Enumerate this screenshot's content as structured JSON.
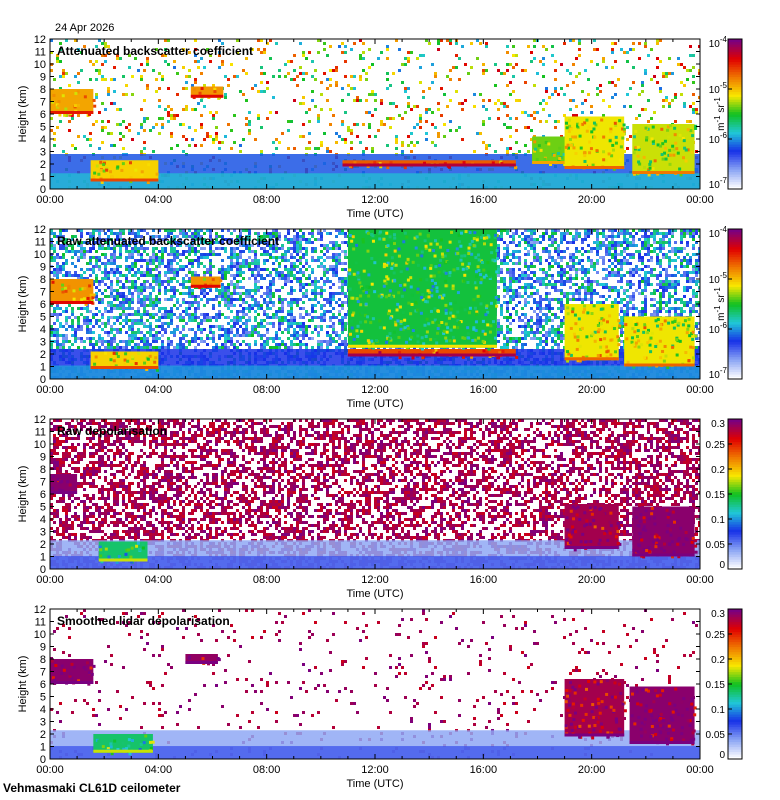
{
  "header": {
    "date": "24 Apr 2026"
  },
  "footer": {
    "site": "Vehmasmaki CL61D ceilometer"
  },
  "colors": {
    "purple": "#7a0080",
    "red": "#e00000",
    "orange": "#f07800",
    "yellow": "#f8e800",
    "green": "#10c020",
    "cyan": "#20c8d8",
    "blue": "#1830e8",
    "lightblue": "#8aa4f4",
    "white": "#ffffff"
  },
  "chart_data": [
    {
      "type": "heatmap",
      "title": "Attenuated backscatter coefficient",
      "xlabel": "Time (UTC)",
      "ylabel": "Height (km)",
      "xticks": [
        "00:00",
        "04:00",
        "08:00",
        "12:00",
        "16:00",
        "20:00",
        "00:00"
      ],
      "yticks": [
        "0",
        "1",
        "2",
        "3",
        "4",
        "5",
        "6",
        "7",
        "8",
        "9",
        "10",
        "11",
        "12"
      ],
      "xlim": [
        0,
        24
      ],
      "ylim": [
        0,
        12
      ],
      "colorbar": {
        "scale": "log",
        "range": [
          1e-07,
          0.0001
        ],
        "ticks": [
          {
            "base": "10",
            "exp": "-4"
          },
          {
            "base": "10",
            "exp": "-5"
          },
          {
            "base": "10",
            "exp": "-6"
          },
          {
            "base": "10",
            "exp": "-7"
          }
        ],
        "unit": {
          "a": "m",
          "a_exp": "-1",
          "b": "sr",
          "b_exp": "-1"
        }
      },
      "boundary_layer": {
        "top_km": 2.8,
        "level": 0.28
      },
      "noise": {
        "density": 0.12,
        "below_km": 12.0,
        "level_lo": 0.3,
        "level_hi": 0.9
      },
      "features": [
        {
          "t0": 0.0,
          "t1": 1.6,
          "z0": 6.0,
          "z1": 8.0,
          "level": 0.7
        },
        {
          "t0": 1.5,
          "t1": 4.0,
          "z0": 0.6,
          "z1": 2.3,
          "level": 0.65
        },
        {
          "t0": 5.2,
          "t1": 6.4,
          "z0": 7.3,
          "z1": 8.2,
          "level": 0.72
        },
        {
          "t0": 10.8,
          "t1": 17.2,
          "z0": 1.8,
          "z1": 2.3,
          "level": 0.78
        },
        {
          "t0": 17.8,
          "t1": 19.2,
          "z0": 2.0,
          "z1": 4.2,
          "level": 0.55
        },
        {
          "t0": 19.0,
          "t1": 21.2,
          "z0": 1.6,
          "z1": 5.8,
          "level": 0.62
        },
        {
          "t0": 21.5,
          "t1": 23.8,
          "z0": 1.2,
          "z1": 5.2,
          "level": 0.6
        }
      ]
    },
    {
      "type": "heatmap",
      "title": "Raw attenuated backscatter coefficient",
      "xlabel": "Time (UTC)",
      "ylabel": "Height (km)",
      "xticks": [
        "00:00",
        "04:00",
        "08:00",
        "12:00",
        "16:00",
        "20:00",
        "00:00"
      ],
      "yticks": [
        "0",
        "1",
        "2",
        "3",
        "4",
        "5",
        "6",
        "7",
        "8",
        "9",
        "10",
        "11",
        "12"
      ],
      "xlim": [
        0,
        24
      ],
      "ylim": [
        0,
        12
      ],
      "colorbar": {
        "scale": "log",
        "range": [
          1e-07,
          0.0001
        ],
        "ticks": [
          {
            "base": "10",
            "exp": "-4"
          },
          {
            "base": "10",
            "exp": "-5"
          },
          {
            "base": "10",
            "exp": "-6"
          },
          {
            "base": "10",
            "exp": "-7"
          }
        ],
        "unit": {
          "a": "m",
          "a_exp": "-1",
          "b": "sr",
          "b_exp": "-1"
        }
      },
      "boundary_layer": {
        "top_km": 2.4,
        "level": 0.25
      },
      "noise": {
        "density": 0.55,
        "below_km": 12.0,
        "level_lo": 0.12,
        "level_hi": 0.5
      },
      "features": [
        {
          "t0": 0.0,
          "t1": 1.6,
          "z0": 6.0,
          "z1": 8.0,
          "level": 0.72
        },
        {
          "t0": 1.5,
          "t1": 4.0,
          "z0": 0.8,
          "z1": 2.2,
          "level": 0.65
        },
        {
          "t0": 5.2,
          "t1": 6.3,
          "z0": 7.3,
          "z1": 8.2,
          "level": 0.72
        },
        {
          "t0": 11.0,
          "t1": 17.2,
          "z0": 1.8,
          "z1": 2.4,
          "level": 0.8
        },
        {
          "t0": 11.0,
          "t1": 16.5,
          "z0": 2.5,
          "z1": 12.0,
          "level": 0.48
        },
        {
          "t0": 19.0,
          "t1": 21.0,
          "z0": 1.5,
          "z1": 6.0,
          "level": 0.62
        },
        {
          "t0": 21.2,
          "t1": 23.8,
          "z0": 1.0,
          "z1": 5.0,
          "level": 0.62
        }
      ]
    },
    {
      "type": "heatmap",
      "title": "Raw depolarisation",
      "xlabel": "Time (UTC)",
      "ylabel": "Height (km)",
      "xticks": [
        "00:00",
        "04:00",
        "08:00",
        "12:00",
        "16:00",
        "20:00",
        "00:00"
      ],
      "yticks": [
        "0",
        "1",
        "2",
        "3",
        "4",
        "5",
        "6",
        "7",
        "8",
        "9",
        "10",
        "11",
        "12"
      ],
      "xlim": [
        0,
        24
      ],
      "ylim": [
        0,
        12
      ],
      "colorbar": {
        "scale": "linear",
        "range": [
          0,
          0.3
        ],
        "ticks": [
          "0.3",
          "0.25",
          "0.2",
          "0.15",
          "0.1",
          "0.05",
          "0"
        ]
      },
      "boundary_layer": {
        "top_km": 2.3,
        "level": 0.12
      },
      "noise": {
        "density": 0.55,
        "below_km": 12.0,
        "level_lo": 0.9,
        "level_hi": 1.0
      },
      "features": [
        {
          "t0": 0.0,
          "t1": 1.0,
          "z0": 6.0,
          "z1": 7.6,
          "level": 0.98
        },
        {
          "t0": 1.8,
          "t1": 3.6,
          "z0": 0.6,
          "z1": 2.2,
          "level": 0.45
        },
        {
          "t0": 19.0,
          "t1": 21.0,
          "z0": 1.6,
          "z1": 5.2,
          "level": 0.95
        },
        {
          "t0": 21.5,
          "t1": 23.8,
          "z0": 1.0,
          "z1": 5.0,
          "level": 0.98
        }
      ]
    },
    {
      "type": "heatmap",
      "title": "Smoothed lidar depolarisation",
      "xlabel": "Time (UTC)",
      "ylabel": "Height (km)",
      "xticks": [
        "00:00",
        "04:00",
        "08:00",
        "12:00",
        "16:00",
        "20:00",
        "00:00"
      ],
      "yticks": [
        "0",
        "1",
        "2",
        "3",
        "4",
        "5",
        "6",
        "7",
        "8",
        "9",
        "10",
        "11",
        "12"
      ],
      "xlim": [
        0,
        24
      ],
      "ylim": [
        0,
        12
      ],
      "colorbar": {
        "scale": "linear",
        "range": [
          0,
          0.3
        ],
        "ticks": [
          "0.3",
          "0.25",
          "0.2",
          "0.15",
          "0.1",
          "0.05",
          "0"
        ]
      },
      "boundary_layer": {
        "top_km": 2.3,
        "level": 0.12
      },
      "noise": {
        "density": 0.05,
        "below_km": 12.0,
        "level_lo": 0.9,
        "level_hi": 1.0
      },
      "features": [
        {
          "t0": 0.0,
          "t1": 1.6,
          "z0": 6.0,
          "z1": 8.0,
          "level": 0.98
        },
        {
          "t0": 1.6,
          "t1": 3.8,
          "z0": 0.5,
          "z1": 2.0,
          "level": 0.45
        },
        {
          "t0": 5.0,
          "t1": 6.2,
          "z0": 7.6,
          "z1": 8.4,
          "level": 0.97
        },
        {
          "t0": 19.0,
          "t1": 21.2,
          "z0": 1.8,
          "z1": 6.4,
          "level": 0.95
        },
        {
          "t0": 21.4,
          "t1": 23.8,
          "z0": 1.2,
          "z1": 5.8,
          "level": 0.98
        }
      ]
    }
  ]
}
